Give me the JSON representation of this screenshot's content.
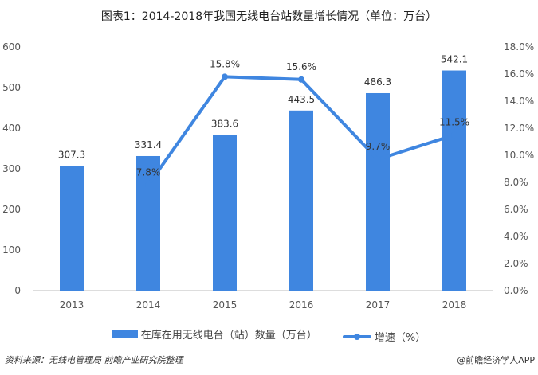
{
  "title": "图表1：2014-2018年我国无线电台站数量增长情况（单位：万台）",
  "chart_data": {
    "type": "bar+line",
    "title": "图表1：2014-2018年我国无线电台站数量增长情况（单位：万台）",
    "categories": [
      "2013",
      "2014",
      "2015",
      "2016",
      "2017",
      "2018"
    ],
    "series": [
      {
        "name": "在库在用无线电台（站）数量（万台）",
        "type": "bar",
        "axis": "left",
        "values": [
          307.3,
          331.4,
          383.6,
          443.5,
          486.3,
          542.1
        ],
        "labels": [
          "307.3",
          "331.4",
          "383.6",
          "443.5",
          "486.3",
          "542.1"
        ],
        "color": "#3f86e0"
      },
      {
        "name": "增速（%）",
        "type": "line",
        "axis": "right",
        "values": [
          null,
          7.8,
          15.8,
          15.6,
          9.7,
          11.5
        ],
        "labels": [
          "",
          "7.8%",
          "15.8%",
          "15.6%",
          "9.7%",
          "11.5%"
        ],
        "color": "#3f86e0"
      }
    ],
    "left_axis": {
      "ylim": [
        0,
        600
      ],
      "ticks": [
        "0",
        "100",
        "200",
        "300",
        "400",
        "500",
        "600"
      ]
    },
    "right_axis": {
      "ylim": [
        0,
        18
      ],
      "ticks": [
        "0.0%",
        "2.0%",
        "4.0%",
        "6.0%",
        "8.0%",
        "10.0%",
        "12.0%",
        "14.0%",
        "16.0%",
        "18.0%"
      ]
    },
    "grid": false,
    "legend_placement": "bottom"
  },
  "legend": {
    "bar": "在库在用无线电台（站）数量（万台）",
    "line": "增速（%）"
  },
  "source": "资料来源：无线电管理局 前瞻产业研究院整理",
  "brand": "@前瞻经济学人APP"
}
